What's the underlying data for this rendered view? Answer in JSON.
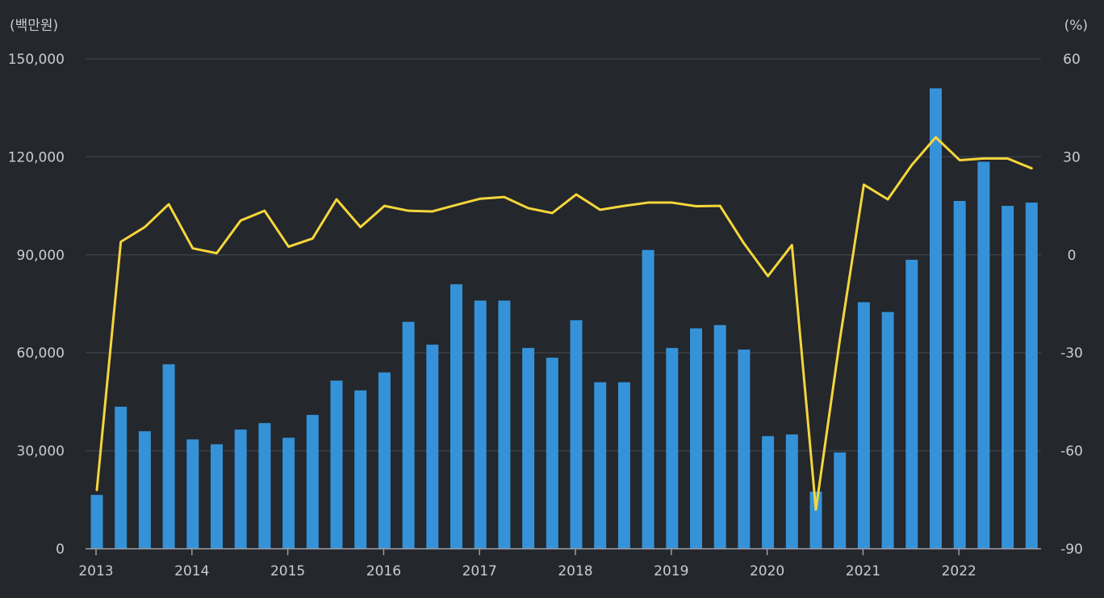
{
  "chart_data": {
    "type": "bar",
    "left_unit": "(백만원)",
    "right_unit": "(%)",
    "y_left": {
      "min": 0,
      "max": 150000,
      "ticks": [
        0,
        30000,
        60000,
        90000,
        120000,
        150000
      ],
      "tick_labels": [
        "0",
        "30,000",
        "60,000",
        "90,000",
        "120,000",
        "150,000"
      ]
    },
    "y_right": {
      "min": -90,
      "max": 60,
      "ticks": [
        -90,
        -60,
        -30,
        0,
        30,
        60
      ],
      "tick_labels": [
        "-90",
        "-60",
        "-30",
        "0",
        "30",
        "60"
      ]
    },
    "x_year_labels": [
      "2013",
      "2014",
      "2015",
      "2016",
      "2017",
      "2018",
      "2019",
      "2020",
      "2021",
      "2022"
    ],
    "categories": [
      "2013Q1",
      "2013Q2",
      "2013Q3",
      "2013Q4",
      "2014Q1",
      "2014Q2",
      "2014Q3",
      "2014Q4",
      "2015Q1",
      "2015Q2",
      "2015Q3",
      "2015Q4",
      "2016Q1",
      "2016Q2",
      "2016Q3",
      "2016Q4",
      "2017Q1",
      "2017Q2",
      "2017Q3",
      "2017Q4",
      "2018Q1",
      "2018Q2",
      "2018Q3",
      "2018Q4",
      "2019Q1",
      "2019Q2",
      "2019Q3",
      "2019Q4",
      "2020Q1",
      "2020Q2",
      "2020Q3",
      "2020Q4",
      "2021Q1",
      "2021Q2",
      "2021Q3",
      "2021Q4",
      "2022Q1",
      "2022Q2",
      "2022Q3",
      "2022Q4"
    ],
    "series": [
      {
        "type": "bar",
        "color": "#3592d8",
        "axis": "left",
        "values": [
          16500,
          43500,
          36000,
          56500,
          33500,
          32000,
          36500,
          38500,
          34000,
          41000,
          51500,
          48500,
          54000,
          69500,
          62500,
          81000,
          76000,
          76000,
          61500,
          58500,
          70000,
          51000,
          51000,
          91500,
          61500,
          67500,
          68500,
          61000,
          34500,
          35000,
          17500,
          29500,
          75500,
          72500,
          88500,
          141000,
          106500,
          118500,
          105000,
          106000
        ]
      },
      {
        "type": "line",
        "color": "#f5d63a",
        "axis": "right",
        "values": [
          -72,
          4,
          8.5,
          15.5,
          2,
          0.5,
          10.5,
          13.5,
          2.5,
          5,
          17,
          8.5,
          15,
          13.5,
          13.3,
          15.3,
          17.2,
          17.7,
          14.3,
          12.8,
          18.5,
          13.8,
          15,
          16,
          16,
          14.9,
          15,
          3.5,
          -6.5,
          3,
          -78,
          -26,
          21.5,
          17,
          27.5,
          36,
          29,
          29.5,
          29.5,
          26.5
        ]
      }
    ],
    "grid": true,
    "legend": "none"
  }
}
